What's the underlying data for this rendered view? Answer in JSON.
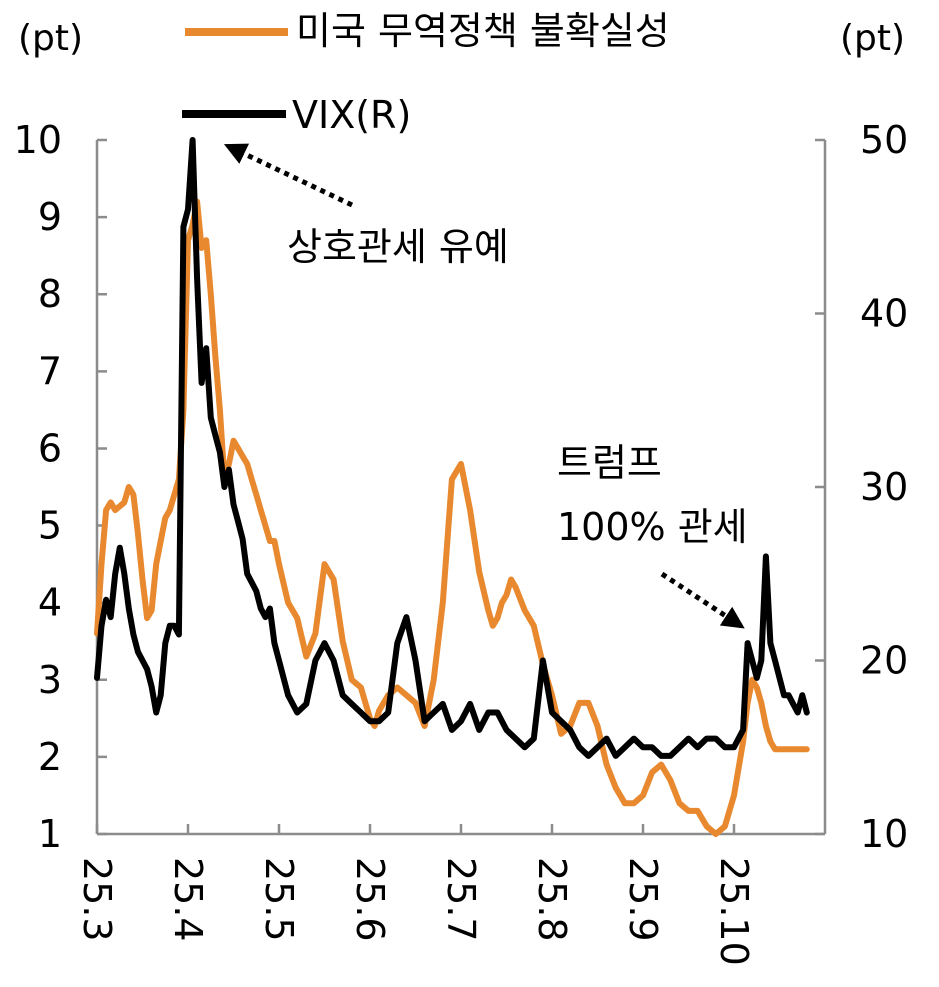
{
  "chart_data": {
    "type": "line",
    "title": "",
    "y_left": {
      "unit": "(pt)",
      "ylim": [
        1,
        10
      ],
      "ticks": [
        "1",
        "2",
        "3",
        "4",
        "5",
        "6",
        "7",
        "8",
        "9",
        "10"
      ]
    },
    "y_right": {
      "unit": "(pt)",
      "ylim": [
        10,
        50
      ],
      "ticks": [
        "10",
        "20",
        "30",
        "40",
        "50"
      ]
    },
    "x_ticks": [
      "25.3",
      "25.4",
      "25.5",
      "25.6",
      "25.7",
      "25.8",
      "25.9",
      "25.10"
    ],
    "x_range": [
      0,
      7.85
    ],
    "legend": {
      "placement": "top"
    },
    "series": [
      {
        "name": "미국 무역정책 불확실성",
        "axis": "left",
        "color": "#E8892F",
        "x": [
          0.0,
          0.05,
          0.1,
          0.15,
          0.2,
          0.3,
          0.35,
          0.4,
          0.45,
          0.5,
          0.55,
          0.6,
          0.65,
          0.7,
          0.75,
          0.8,
          0.85,
          0.9,
          0.95,
          1.0,
          1.05,
          1.1,
          1.15,
          1.2,
          1.25,
          1.3,
          1.35,
          1.4,
          1.45,
          1.5,
          1.55,
          1.6,
          1.65,
          1.7,
          1.75,
          1.8,
          1.85,
          1.9,
          1.95,
          2.0,
          2.1,
          2.2,
          2.3,
          2.4,
          2.5,
          2.6,
          2.7,
          2.8,
          2.9,
          2.95,
          3.0,
          3.05,
          3.1,
          3.2,
          3.3,
          3.4,
          3.5,
          3.6,
          3.7,
          3.8,
          3.9,
          4.0,
          4.1,
          4.2,
          4.3,
          4.35,
          4.4,
          4.45,
          4.5,
          4.55,
          4.6,
          4.7,
          4.8,
          4.9,
          5.0,
          5.1,
          5.2,
          5.3,
          5.4,
          5.5,
          5.6,
          5.7,
          5.8,
          5.9,
          6.0,
          6.1,
          6.2,
          6.3,
          6.4,
          6.5,
          6.6,
          6.7,
          6.8,
          6.9,
          7.0,
          7.1,
          7.15,
          7.2,
          7.25,
          7.3,
          7.35,
          7.4,
          7.45,
          7.5,
          7.55,
          7.6,
          7.65,
          7.7,
          7.75,
          7.8
        ],
        "values": [
          3.6,
          4.5,
          5.2,
          5.3,
          5.2,
          5.3,
          5.5,
          5.4,
          4.9,
          4.3,
          3.8,
          3.9,
          4.5,
          4.8,
          5.1,
          5.2,
          5.4,
          5.6,
          6.5,
          8.7,
          8.9,
          9.2,
          8.6,
          8.7,
          8.0,
          7.2,
          6.5,
          5.6,
          5.8,
          6.1,
          6.0,
          5.9,
          5.8,
          5.6,
          5.4,
          5.2,
          5.0,
          4.8,
          4.8,
          4.5,
          4.0,
          3.8,
          3.3,
          3.6,
          4.5,
          4.3,
          3.5,
          3.0,
          2.9,
          2.7,
          2.5,
          2.4,
          2.6,
          2.8,
          2.9,
          2.8,
          2.7,
          2.4,
          3.0,
          4.0,
          5.6,
          5.8,
          5.2,
          4.4,
          3.9,
          3.7,
          3.8,
          4.0,
          4.1,
          4.3,
          4.2,
          3.9,
          3.7,
          3.2,
          2.8,
          2.3,
          2.4,
          2.7,
          2.7,
          2.4,
          1.9,
          1.6,
          1.4,
          1.4,
          1.5,
          1.8,
          1.9,
          1.7,
          1.4,
          1.3,
          1.3,
          1.1,
          1.0,
          1.1,
          1.5,
          2.2,
          2.7,
          3.0,
          2.9,
          2.7,
          2.4,
          2.2,
          2.1,
          2.1,
          2.1,
          2.1,
          2.1,
          2.1,
          2.1,
          2.1
        ]
      },
      {
        "name": "VIX(R)",
        "axis": "right",
        "color": "#000000",
        "x": [
          0.0,
          0.05,
          0.1,
          0.15,
          0.2,
          0.25,
          0.3,
          0.35,
          0.4,
          0.45,
          0.5,
          0.55,
          0.6,
          0.65,
          0.7,
          0.75,
          0.8,
          0.85,
          0.9,
          0.95,
          1.0,
          1.05,
          1.1,
          1.15,
          1.2,
          1.25,
          1.3,
          1.35,
          1.4,
          1.45,
          1.5,
          1.55,
          1.6,
          1.65,
          1.7,
          1.75,
          1.8,
          1.85,
          1.9,
          1.95,
          2.0,
          2.1,
          2.2,
          2.3,
          2.4,
          2.5,
          2.6,
          2.7,
          2.8,
          2.9,
          3.0,
          3.1,
          3.2,
          3.3,
          3.4,
          3.5,
          3.6,
          3.7,
          3.8,
          3.9,
          4.0,
          4.1,
          4.2,
          4.3,
          4.4,
          4.5,
          4.6,
          4.7,
          4.8,
          4.9,
          5.0,
          5.1,
          5.2,
          5.3,
          5.4,
          5.5,
          5.6,
          5.7,
          5.8,
          5.9,
          6.0,
          6.1,
          6.2,
          6.3,
          6.4,
          6.5,
          6.6,
          6.7,
          6.8,
          6.9,
          7.0,
          7.05,
          7.1,
          7.15,
          7.2,
          7.25,
          7.3,
          7.35,
          7.4,
          7.45,
          7.5,
          7.55,
          7.6,
          7.65,
          7.7,
          7.75,
          7.8
        ],
        "values": [
          19.0,
          22.0,
          23.5,
          22.5,
          25.0,
          26.5,
          25.0,
          23.0,
          21.5,
          20.5,
          20.0,
          19.5,
          18.5,
          17.0,
          18.0,
          21.0,
          22.0,
          22.0,
          21.5,
          45.0,
          46.0,
          50.0,
          42.0,
          36.0,
          38.0,
          34.0,
          33.0,
          32.0,
          30.0,
          31.0,
          29.0,
          28.0,
          27.0,
          25.0,
          24.5,
          24.0,
          23.0,
          22.5,
          23.0,
          21.0,
          20.0,
          18.0,
          17.0,
          17.5,
          20.0,
          21.0,
          20.0,
          18.0,
          17.5,
          17.0,
          16.5,
          16.5,
          17.0,
          21.0,
          22.5,
          20.0,
          16.5,
          17.0,
          17.5,
          16.0,
          16.5,
          17.5,
          16.0,
          17.0,
          17.0,
          16.0,
          15.5,
          15.0,
          15.5,
          20.0,
          17.0,
          16.5,
          16.0,
          15.0,
          14.5,
          15.0,
          15.5,
          14.5,
          15.0,
          15.5,
          15.0,
          15.0,
          14.5,
          14.5,
          15.0,
          15.5,
          15.0,
          15.5,
          15.5,
          15.0,
          15.0,
          15.5,
          16.0,
          21.0,
          20.0,
          19.0,
          20.0,
          26.0,
          21.0,
          20.0,
          19.0,
          18.0,
          18.0,
          17.5,
          17.0,
          18.0,
          17.0
        ]
      }
    ],
    "annotations": [
      {
        "text": "상호관세 유예"
      },
      {
        "line1": "트럼프",
        "line2": "100% 관세"
      }
    ]
  }
}
